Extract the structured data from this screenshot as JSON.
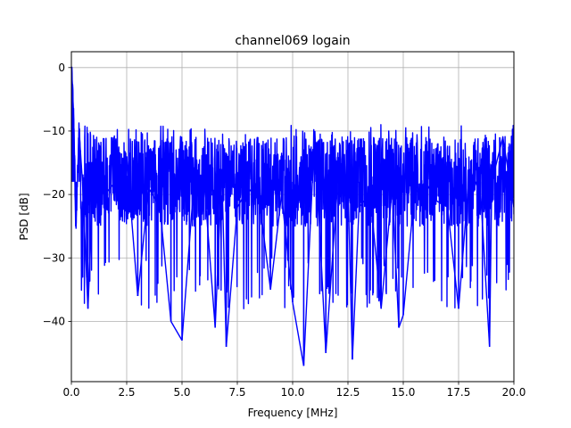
{
  "chart_data": {
    "type": "line",
    "title": "channel069 logain",
    "xlabel": "Frequency [MHz]",
    "ylabel": "PSD [dB]",
    "xlim": [
      0,
      20
    ],
    "ylim": [
      -49.5,
      2.5
    ],
    "grid": true,
    "line_color": "#0000ff",
    "x_ticks": [
      0,
      2.5,
      5,
      7.5,
      10,
      12.5,
      15,
      17.5,
      20
    ],
    "x_tick_labels": [
      "0.0",
      "2.5",
      "5.0",
      "7.5",
      "10.0",
      "12.5",
      "15.0",
      "17.5",
      "20.0"
    ],
    "y_ticks": [
      0,
      -10,
      -20,
      -30,
      -40
    ],
    "y_tick_labels": [
      "0",
      "−10",
      "−20",
      "−30",
      "−40"
    ],
    "series": [
      {
        "x": [
          0.0,
          0.05,
          0.1,
          0.15,
          0.2,
          0.25,
          0.35,
          0.5,
          0.75,
          1.0,
          1.5,
          2.0,
          2.5,
          3.0,
          3.5,
          4.0,
          4.5,
          5.0,
          5.5,
          6.0,
          6.5,
          6.8,
          7.0,
          7.5,
          8.0,
          8.5,
          9.0,
          9.5,
          10.0,
          10.5,
          11.0,
          11.5,
          12.0,
          12.5,
          12.7,
          13.0,
          13.5,
          14.0,
          14.5,
          14.8,
          15.0,
          15.5,
          16.0,
          16.5,
          17.0,
          17.5,
          18.0,
          18.5,
          18.9,
          19.0,
          19.5,
          20.0
        ],
        "y": [
          0,
          -3,
          -8,
          -15,
          -25,
          -20,
          -10,
          -18,
          -38,
          -16,
          -20,
          -18,
          -14,
          -36,
          -19,
          -22,
          -40,
          -43,
          -20,
          -18,
          -41,
          -16,
          -44,
          -22,
          -19,
          -21,
          -35,
          -20,
          -37,
          -47,
          -10,
          -45,
          -20,
          -18,
          -46,
          -22,
          -20,
          -38,
          -19,
          -41,
          -39,
          -20,
          -18,
          -21,
          -22,
          -38,
          -16,
          -20,
          -44,
          -18,
          -11,
          -22
        ]
      }
    ]
  }
}
